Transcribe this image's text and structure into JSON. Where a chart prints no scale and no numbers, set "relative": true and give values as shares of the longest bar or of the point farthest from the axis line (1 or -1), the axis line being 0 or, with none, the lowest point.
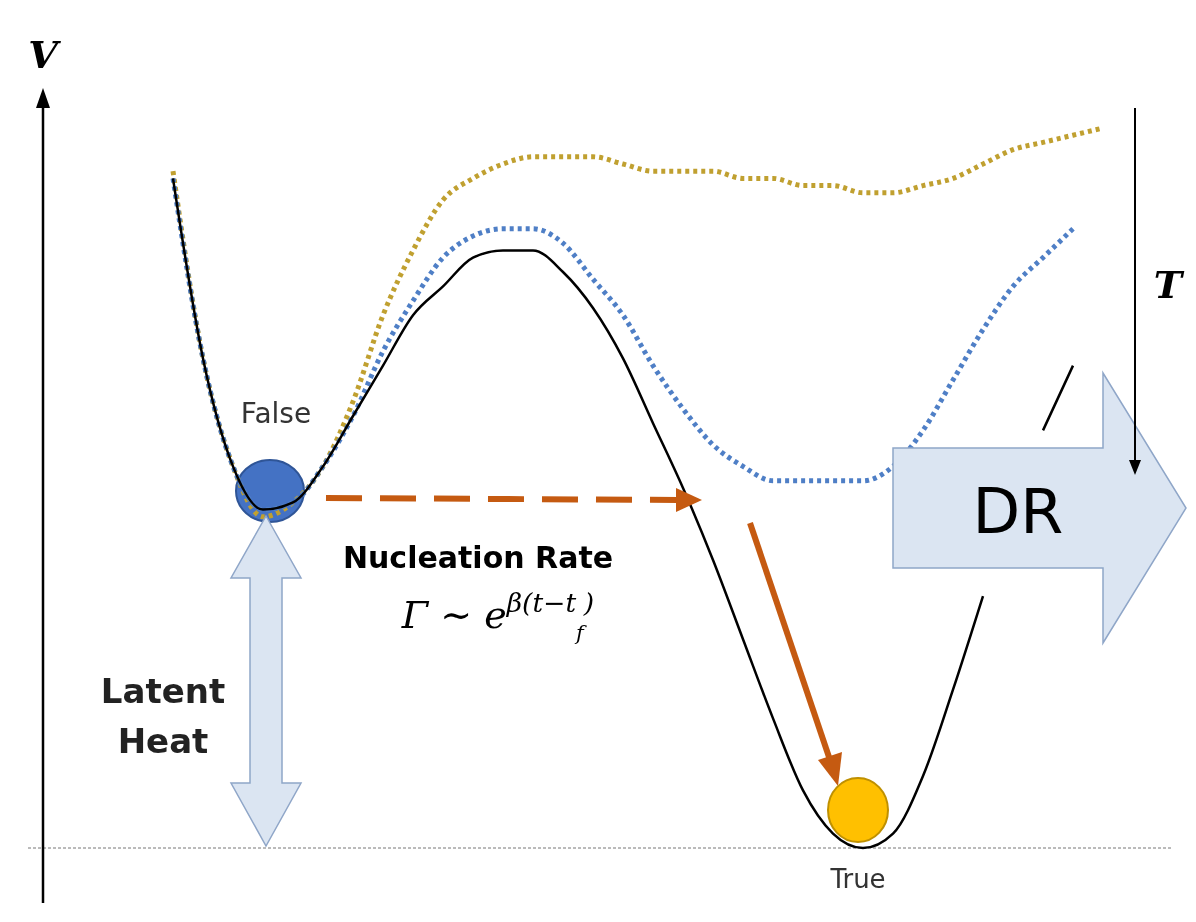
{
  "chart_data": {
    "type": "line",
    "relative": true,
    "ylabel": "V",
    "categories": [
      null,
      null,
      null,
      null,
      null,
      null,
      null,
      null,
      null,
      null,
      null,
      null,
      null,
      null,
      null,
      null,
      null,
      null,
      null,
      null,
      null,
      null,
      null,
      null,
      null,
      null,
      null,
      null,
      null,
      null,
      null,
      null
    ],
    "series": [
      {
        "color": "#c0a030",
        "line_style": "dotted",
        "values": [
          0.94,
          0.68,
          0.53,
          0.46,
          0.48,
          0.53,
          0.62,
          0.74,
          0.83,
          0.9,
          0.93,
          0.95,
          0.96,
          0.96,
          0.96,
          0.95,
          0.94,
          0.94,
          0.94,
          0.93,
          0.93,
          0.92,
          0.92,
          0.91,
          0.91,
          0.92,
          0.93,
          0.95,
          0.97,
          0.98,
          0.99,
          1
        ]
      },
      {
        "color": "#4f7fc6",
        "line_style": "dotted",
        "values": [
          0.93,
          0.68,
          0.53,
          0.47,
          0.48,
          0.53,
          0.6,
          0.69,
          0.76,
          0.82,
          0.85,
          0.86,
          0.86,
          0.84,
          0.79,
          0.74,
          0.67,
          0.61,
          0.56,
          0.53,
          0.51,
          0.51,
          0.51,
          0.51,
          0.53,
          0.58,
          0.65,
          0.72,
          0.78,
          0.82,
          0.86,
          null
        ]
      },
      {
        "color": "#000000",
        "line_style": "solid",
        "values": [
          0.93,
          0.68,
          0.53,
          0.47,
          0.48,
          0.53,
          0.6,
          0.67,
          0.74,
          0.78,
          0.82,
          0.83,
          0.83,
          0.8,
          0.75,
          0.68,
          0.59,
          0.5,
          0.4,
          0.29,
          0.18,
          0.08,
          0.02,
          0.0,
          0.02,
          0.1,
          0.22,
          0.35,
          null,
          0.58,
          0.67,
          null
        ]
      }
    ],
    "annotations": [
      "False",
      "True",
      "Nucleation Rate",
      "Γ ∼ e$^{β(t−t}$$_{f}$$^{)}$",
      "Latent",
      "Heat",
      "DR",
      "T"
    ]
  }
}
